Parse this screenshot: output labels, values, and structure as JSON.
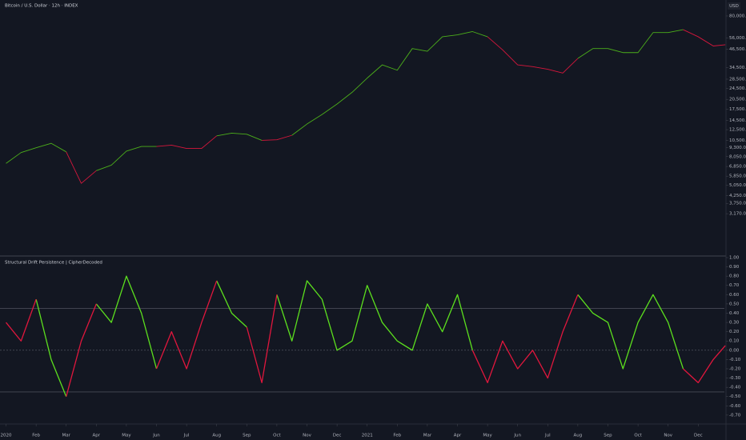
{
  "chart_data": [
    {
      "type": "line",
      "title": "Bitcoin / U.S. Dollar · 12h · INDEX",
      "currency": "USD",
      "log_scale": true,
      "x": [
        0,
        0.5,
        1,
        1.5,
        2,
        2.5,
        3,
        3.5,
        4,
        4.5,
        5,
        5.5,
        6,
        6.5,
        7,
        7.5,
        8,
        8.5,
        9,
        9.5,
        10,
        10.5,
        11,
        11.5,
        12,
        12.5,
        13,
        13.5,
        14,
        14.5,
        15,
        15.5,
        16,
        16.5,
        17,
        17.5,
        18,
        18.5,
        19,
        19.5,
        20,
        20.5,
        21,
        21.5,
        22,
        22.5,
        23,
        23.5,
        23.9
      ],
      "xlim": [
        -0.2,
        23.87
      ],
      "ylim": [
        1630,
        86500
      ],
      "yticks": [
        {
          "value": 80000,
          "label": "80,000.00"
        },
        {
          "value": 56000,
          "label": "56,000.00"
        },
        {
          "value": 46500,
          "label": "46,500.00"
        },
        {
          "value": 34500,
          "label": "34,500.00"
        },
        {
          "value": 28500,
          "label": "28,500.00"
        },
        {
          "value": 24500,
          "label": "24,500.00"
        },
        {
          "value": 20500,
          "label": "20,500.00"
        },
        {
          "value": 17500,
          "label": "17,500.00"
        },
        {
          "value": 14500,
          "label": "14,500.00"
        },
        {
          "value": 12500,
          "label": "12,500.00"
        },
        {
          "value": 10500,
          "label": "10,500.00"
        },
        {
          "value": 9300,
          "label": "9,300.00"
        },
        {
          "value": 8050,
          "label": "8,050.00"
        },
        {
          "value": 6850,
          "label": "6,850.00"
        },
        {
          "value": 5850,
          "label": "5,850.00"
        },
        {
          "value": 5050,
          "label": "5,050.00"
        },
        {
          "value": 4250,
          "label": "4,250.00"
        },
        {
          "value": 3750,
          "label": "3,750.00"
        },
        {
          "value": 3170,
          "label": "3,170.00"
        }
      ],
      "series": [
        {
          "color": "#4caf1a",
          "values": [
            7200,
            8600,
            9300,
            10000,
            8700,
            null,
            6400,
            7000,
            8800,
            9500,
            9500,
            null,
            null,
            null,
            11300,
            11800,
            11600,
            10500,
            null,
            11400,
            13700,
            16000,
            19000,
            23000,
            29000,
            36000,
            33000,
            47000,
            45000,
            57000,
            58800,
            62000,
            57000,
            null,
            null,
            null,
            null,
            null,
            40000,
            47000,
            47000,
            44000,
            44000,
            61000,
            61000,
            64000,
            null,
            null,
            null
          ]
        },
        {
          "color": "#d6173c",
          "values": [
            null,
            null,
            null,
            null,
            8700,
            5200,
            6400,
            null,
            null,
            null,
            9500,
            9700,
            9200,
            9200,
            11300,
            null,
            null,
            10500,
            10600,
            11400,
            null,
            null,
            null,
            null,
            null,
            null,
            null,
            null,
            null,
            null,
            null,
            null,
            57000,
            46000,
            36000,
            35000,
            33500,
            31500,
            40000,
            null,
            null,
            null,
            null,
            null,
            null,
            64000,
            57000,
            49000,
            50000
          ]
        }
      ]
    },
    {
      "type": "line",
      "title": "Structural Drift Persistence | CipherDecoded",
      "x": [
        0,
        0.5,
        1,
        1.5,
        2,
        2.5,
        3,
        3.5,
        4,
        4.5,
        5,
        5.5,
        6,
        6.5,
        7,
        7.5,
        8,
        8.5,
        9,
        9.5,
        10,
        10.5,
        11,
        11.5,
        12,
        12.5,
        13,
        13.5,
        14,
        14.5,
        15,
        15.5,
        16,
        16.5,
        17,
        17.5,
        18,
        18.5,
        19,
        19.5,
        20,
        20.5,
        21,
        21.5,
        22,
        22.5,
        23,
        23.5,
        23.9
      ],
      "xlim": [
        -0.2,
        23.87
      ],
      "xticks": [
        {
          "value": 0,
          "label": "2020"
        },
        {
          "value": 1,
          "label": "Feb"
        },
        {
          "value": 2,
          "label": "Mar"
        },
        {
          "value": 3,
          "label": "Apr"
        },
        {
          "value": 4,
          "label": "May"
        },
        {
          "value": 5,
          "label": "Jun"
        },
        {
          "value": 6,
          "label": "Jul"
        },
        {
          "value": 7,
          "label": "Aug"
        },
        {
          "value": 8,
          "label": "Sep"
        },
        {
          "value": 9,
          "label": "Oct"
        },
        {
          "value": 10,
          "label": "Nov"
        },
        {
          "value": 11,
          "label": "Dec"
        },
        {
          "value": 12,
          "label": "2021"
        },
        {
          "value": 13,
          "label": "Feb"
        },
        {
          "value": 14,
          "label": "Mar"
        },
        {
          "value": 15,
          "label": "Apr"
        },
        {
          "value": 16,
          "label": "May"
        },
        {
          "value": 17,
          "label": "Jun"
        },
        {
          "value": 18,
          "label": "Jul"
        },
        {
          "value": 19,
          "label": "Aug"
        },
        {
          "value": 20,
          "label": "Sep"
        },
        {
          "value": 21,
          "label": "Oct"
        },
        {
          "value": 22,
          "label": "Nov"
        },
        {
          "value": 23,
          "label": "Dec"
        }
      ],
      "ylim": [
        -0.77,
        1.0
      ],
      "yticks": [
        {
          "value": 1,
          "label": "1.00"
        },
        {
          "value": 0.9,
          "label": "0.90"
        },
        {
          "value": 0.8,
          "label": "0.80"
        },
        {
          "value": 0.7,
          "label": "0.70"
        },
        {
          "value": 0.6,
          "label": "0.60"
        },
        {
          "value": 0.5,
          "label": "0.50"
        },
        {
          "value": 0.4,
          "label": "0.40"
        },
        {
          "value": 0.3,
          "label": "0.30"
        },
        {
          "value": 0.2,
          "label": "0.20"
        },
        {
          "value": 0.1,
          "label": "0.10"
        },
        {
          "value": 0,
          "label": "0.00"
        },
        {
          "value": -0.1,
          "label": "-0.10"
        },
        {
          "value": -0.2,
          "label": "-0.20"
        },
        {
          "value": -0.3,
          "label": "-0.30"
        },
        {
          "value": -0.4,
          "label": "-0.40"
        },
        {
          "value": -0.5,
          "label": "-0.50"
        },
        {
          "value": -0.6,
          "label": "-0.60"
        },
        {
          "value": -0.7,
          "label": "-0.70"
        }
      ],
      "levels": [
        0.45,
        0,
        -0.45
      ],
      "series": [
        {
          "color": "#5ce01e",
          "values": [
            null,
            null,
            0.55,
            -0.1,
            -0.5,
            null,
            0.5,
            0.3,
            0.8,
            0.4,
            -0.2,
            null,
            null,
            null,
            0.75,
            0.4,
            0.25,
            null,
            0.6,
            0.1,
            0.75,
            0.55,
            0.0,
            0.1,
            0.7,
            0.3,
            0.1,
            0.0,
            0.5,
            0.2,
            0.6,
            0.0,
            null,
            null,
            null,
            null,
            null,
            null,
            0.6,
            0.4,
            0.3,
            -0.2,
            0.3,
            0.6,
            0.3,
            -0.2,
            null,
            null,
            null
          ]
        },
        {
          "color": "#e0173d",
          "values": [
            0.3,
            0.1,
            0.55,
            null,
            -0.5,
            0.1,
            0.5,
            null,
            null,
            null,
            -0.2,
            0.2,
            -0.2,
            0.3,
            0.75,
            null,
            0.25,
            -0.35,
            0.6,
            null,
            null,
            null,
            null,
            null,
            null,
            null,
            null,
            null,
            null,
            null,
            null,
            0.0,
            -0.35,
            0.1,
            -0.2,
            0.0,
            -0.3,
            0.2,
            0.6,
            null,
            null,
            null,
            null,
            null,
            null,
            -0.2,
            -0.35,
            -0.1,
            0.05
          ]
        }
      ]
    }
  ]
}
